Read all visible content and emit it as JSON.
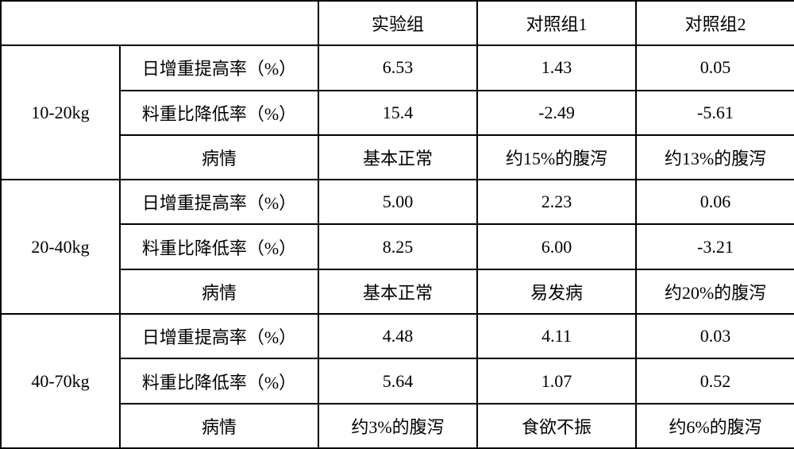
{
  "header": {
    "col_experimental": "实验组",
    "col_control1": "对照组1",
    "col_control2": "对照组2"
  },
  "metrics": {
    "daily_gain": "日增重提高率（%）",
    "feed_ratio": "料重比降低率（%）",
    "condition": "病情"
  },
  "groups": [
    {
      "weight": "10-20kg",
      "rows": [
        {
          "metric_key": "daily_gain",
          "exp": "6.53",
          "c1": "1.43",
          "c2": "0.05"
        },
        {
          "metric_key": "feed_ratio",
          "exp": "15.4",
          "c1": "-2.49",
          "c2": "-5.61"
        },
        {
          "metric_key": "condition",
          "exp": "基本正常",
          "c1": "约15%的腹泻",
          "c2": "约13%的腹泻"
        }
      ]
    },
    {
      "weight": "20-40kg",
      "rows": [
        {
          "metric_key": "daily_gain",
          "exp": "5.00",
          "c1": "2.23",
          "c2": "0.06"
        },
        {
          "metric_key": "feed_ratio",
          "exp": "8.25",
          "c1": "6.00",
          "c2": "-3.21"
        },
        {
          "metric_key": "condition",
          "exp": "基本正常",
          "c1": "易发病",
          "c2": "约20%的腹泻"
        }
      ]
    },
    {
      "weight": "40-70kg",
      "rows": [
        {
          "metric_key": "daily_gain",
          "exp": "4.48",
          "c1": "4.11",
          "c2": "0.03"
        },
        {
          "metric_key": "feed_ratio",
          "exp": "5.64",
          "c1": "1.07",
          "c2": "0.52"
        },
        {
          "metric_key": "condition",
          "exp": "约3%的腹泻",
          "c1": "食欲不振",
          "c2": "约6%的腹泻"
        }
      ]
    }
  ],
  "style": {
    "font_size": 22,
    "border_color": "#000000",
    "background_color": "#ffffff",
    "text_color": "#000000",
    "col_widths": {
      "weight": 150,
      "metric": 250,
      "data": 200
    }
  }
}
